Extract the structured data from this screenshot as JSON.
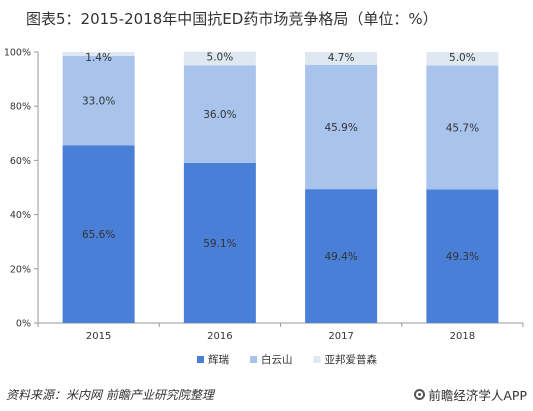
{
  "title": "图表5：2015-2018年中国抗ED药市场竞争格局（单位：%）",
  "source": "资料来源：米内网 前瞻产业研究院整理",
  "brand": "前瞻经济学人APP",
  "brand_icon": "logo-icon",
  "chart_data": {
    "type": "bar",
    "stacked": true,
    "title": "图表5：2015-2018年中国抗ED药市场竞争格局（单位：%）",
    "categories": [
      "2015",
      "2016",
      "2017",
      "2018"
    ],
    "series": [
      {
        "name": "辉瑞",
        "color": "#4a7fd8",
        "values": [
          65.6,
          59.1,
          49.4,
          49.3
        ],
        "labels": [
          "65.6%",
          "59.1%",
          "49.4%",
          "49.3%"
        ]
      },
      {
        "name": "白云山",
        "color": "#a8c3ec",
        "values": [
          33.0,
          36.0,
          45.9,
          45.7
        ],
        "labels": [
          "33.0%",
          "36.0%",
          "45.9%",
          "45.7%"
        ]
      },
      {
        "name": "亚邦爱普森",
        "color": "#dfe7f1",
        "values": [
          1.4,
          5.0,
          4.7,
          5.0
        ],
        "labels": [
          "1.4%",
          "5.0%",
          "4.7%",
          "5.0%"
        ]
      }
    ],
    "yticks": [
      "0%",
      "20%",
      "40%",
      "60%",
      "80%",
      "100%"
    ],
    "ylim": [
      0,
      100
    ],
    "grid": false,
    "legend": "bottom"
  }
}
